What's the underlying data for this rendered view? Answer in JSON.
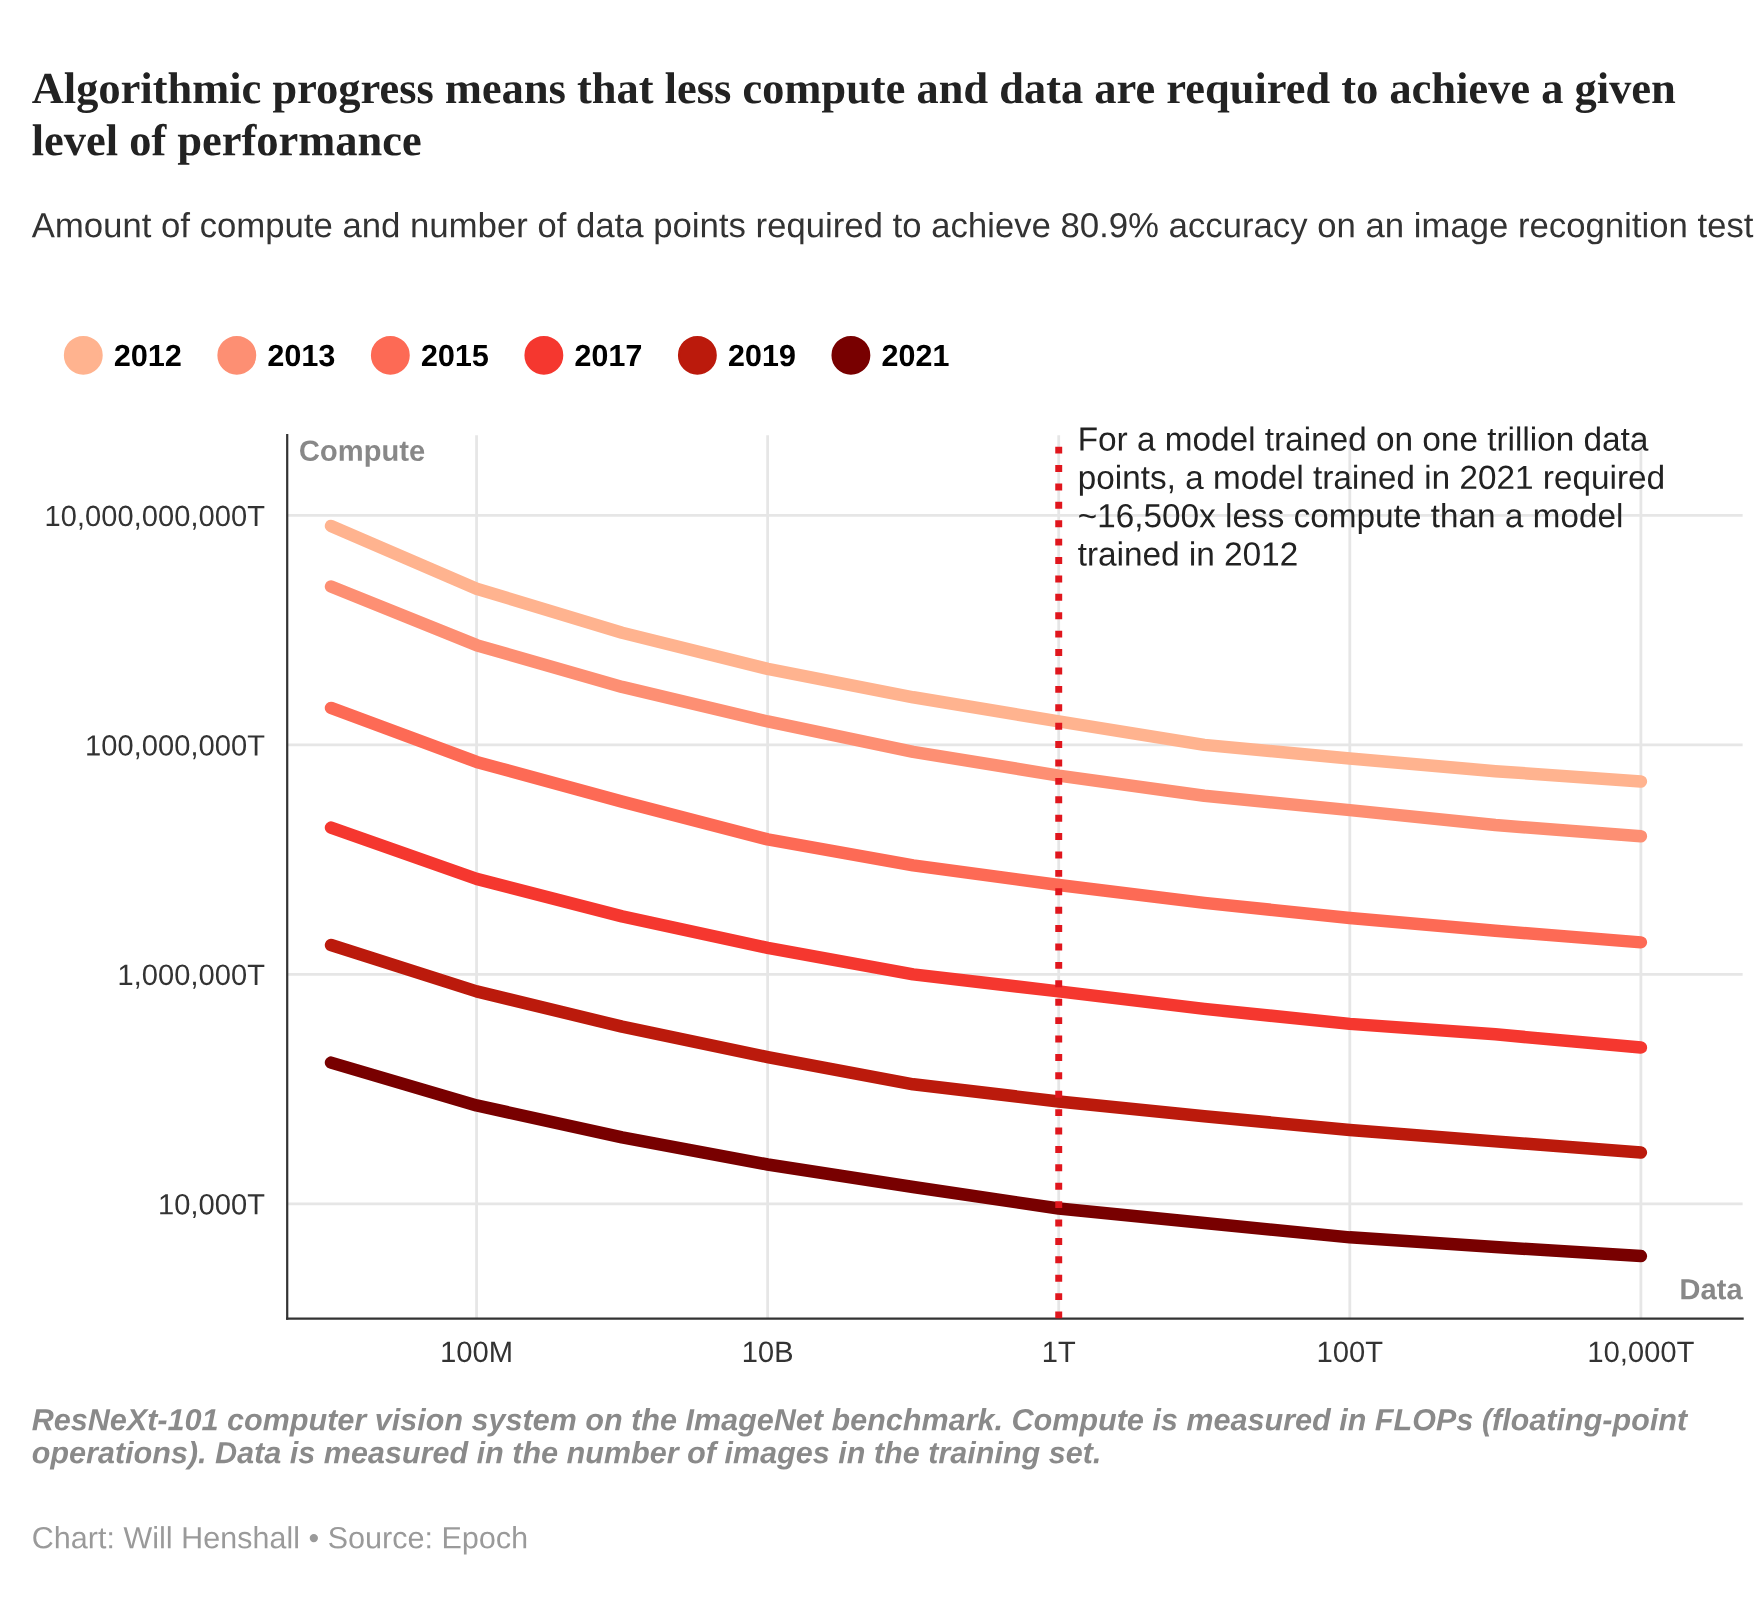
{
  "chart_data": {
    "type": "line",
    "title": "Algorithmic progress means that less compute and data are required to achieve a given level of performance",
    "subtitle": "Amount of compute and number of data points required to achieve 80.9% accuracy on an image recognition test",
    "ylabel": "Compute",
    "xlabel": "Data",
    "log": "xy",
    "x": [
      10000000.0,
      100000000.0,
      1000000000.0,
      10000000000.0,
      100000000000.0,
      1000000000000.0,
      10000000000000.0,
      100000000000000.0,
      1000000000000000.0,
      1e+16
    ],
    "series": [
      {
        "name": "2012",
        "color": "#ffb38f",
        "values": [
          8100000000.0,
          2300000000.0,
          950000000.0,
          460000000.0,
          260000000.0,
          160000000.0,
          100000000.0,
          76000000.0,
          59000000.0,
          48000000.0
        ]
      },
      {
        "name": "2013",
        "color": "#fd8f73",
        "values": [
          2400000000.0,
          740000000.0,
          320000000.0,
          160000000.0,
          87000000.0,
          54000000.0,
          36000000.0,
          27000000.0,
          20000000.0,
          16000000.0
        ]
      },
      {
        "name": "2015",
        "color": "#fd6a55",
        "values": [
          210000000.0,
          71000000.0,
          32000000.0,
          15000000.0,
          8900000.0,
          6000000.0,
          4200000.0,
          3100000.0,
          2400000.0,
          1900000.0
        ]
      },
      {
        "name": "2017",
        "color": "#f5372f",
        "values": [
          19000000.0,
          6800000.0,
          3200000.0,
          1700000.0,
          1000000.0,
          710000.0,
          500000.0,
          370000.0,
          300000.0,
          230000.0
        ]
      },
      {
        "name": "2019",
        "color": "#bb1a0c",
        "values": [
          1800000.0,
          710000.0,
          350000.0,
          190000.0,
          110000.0,
          78000.0,
          58000.0,
          44000.0,
          35000.0,
          28000.0
        ]
      },
      {
        "name": "2021",
        "color": "#780000",
        "values": [
          170000.0,
          72000.0,
          38000.0,
          22000.0,
          14000.0,
          9100.0,
          6800.0,
          5100.0,
          4200.0,
          3500.0
        ]
      }
    ],
    "xlim": [
      5000000.0,
      5e+16
    ],
    "ylim": [
      1000,
      50000000000.0
    ],
    "xticks": [
      {
        "value": 100000000.0,
        "label": "100M"
      },
      {
        "value": 10000000000.0,
        "label": "10B"
      },
      {
        "value": 1000000000000.0,
        "label": "1T"
      },
      {
        "value": 100000000000000.0,
        "label": "100T"
      },
      {
        "value": 1e+16,
        "label": "10,000T"
      }
    ],
    "yticks": [
      {
        "value": 10000.0,
        "label": "10,000T"
      },
      {
        "value": 1000000.0,
        "label": "1,000,000T"
      },
      {
        "value": 100000000.0,
        "label": "100,000,000T"
      },
      {
        "value": 10000000000.0,
        "label": "10,000,000,000T"
      }
    ],
    "ref_lines": [
      {
        "axis": "x",
        "value": 1000000000000.0,
        "label": "For a model trained on one trillion data points, a model trained in 2021 required ~16,500x less compute than a model trained in 2012",
        "color": "#e0161d",
        "line_style": "dotted"
      }
    ],
    "annotations": [
      "ResNeXt-101 computer vision system on the ImageNet benchmark. Compute is measured in FLOPs (floating-point operations). Data is measured in the number of images in the training set.",
      "Chart: Will Henshall • Source: Epoch"
    ],
    "grid": true,
    "legend": "top left",
    "marker": "none",
    "line_style": "solid"
  }
}
